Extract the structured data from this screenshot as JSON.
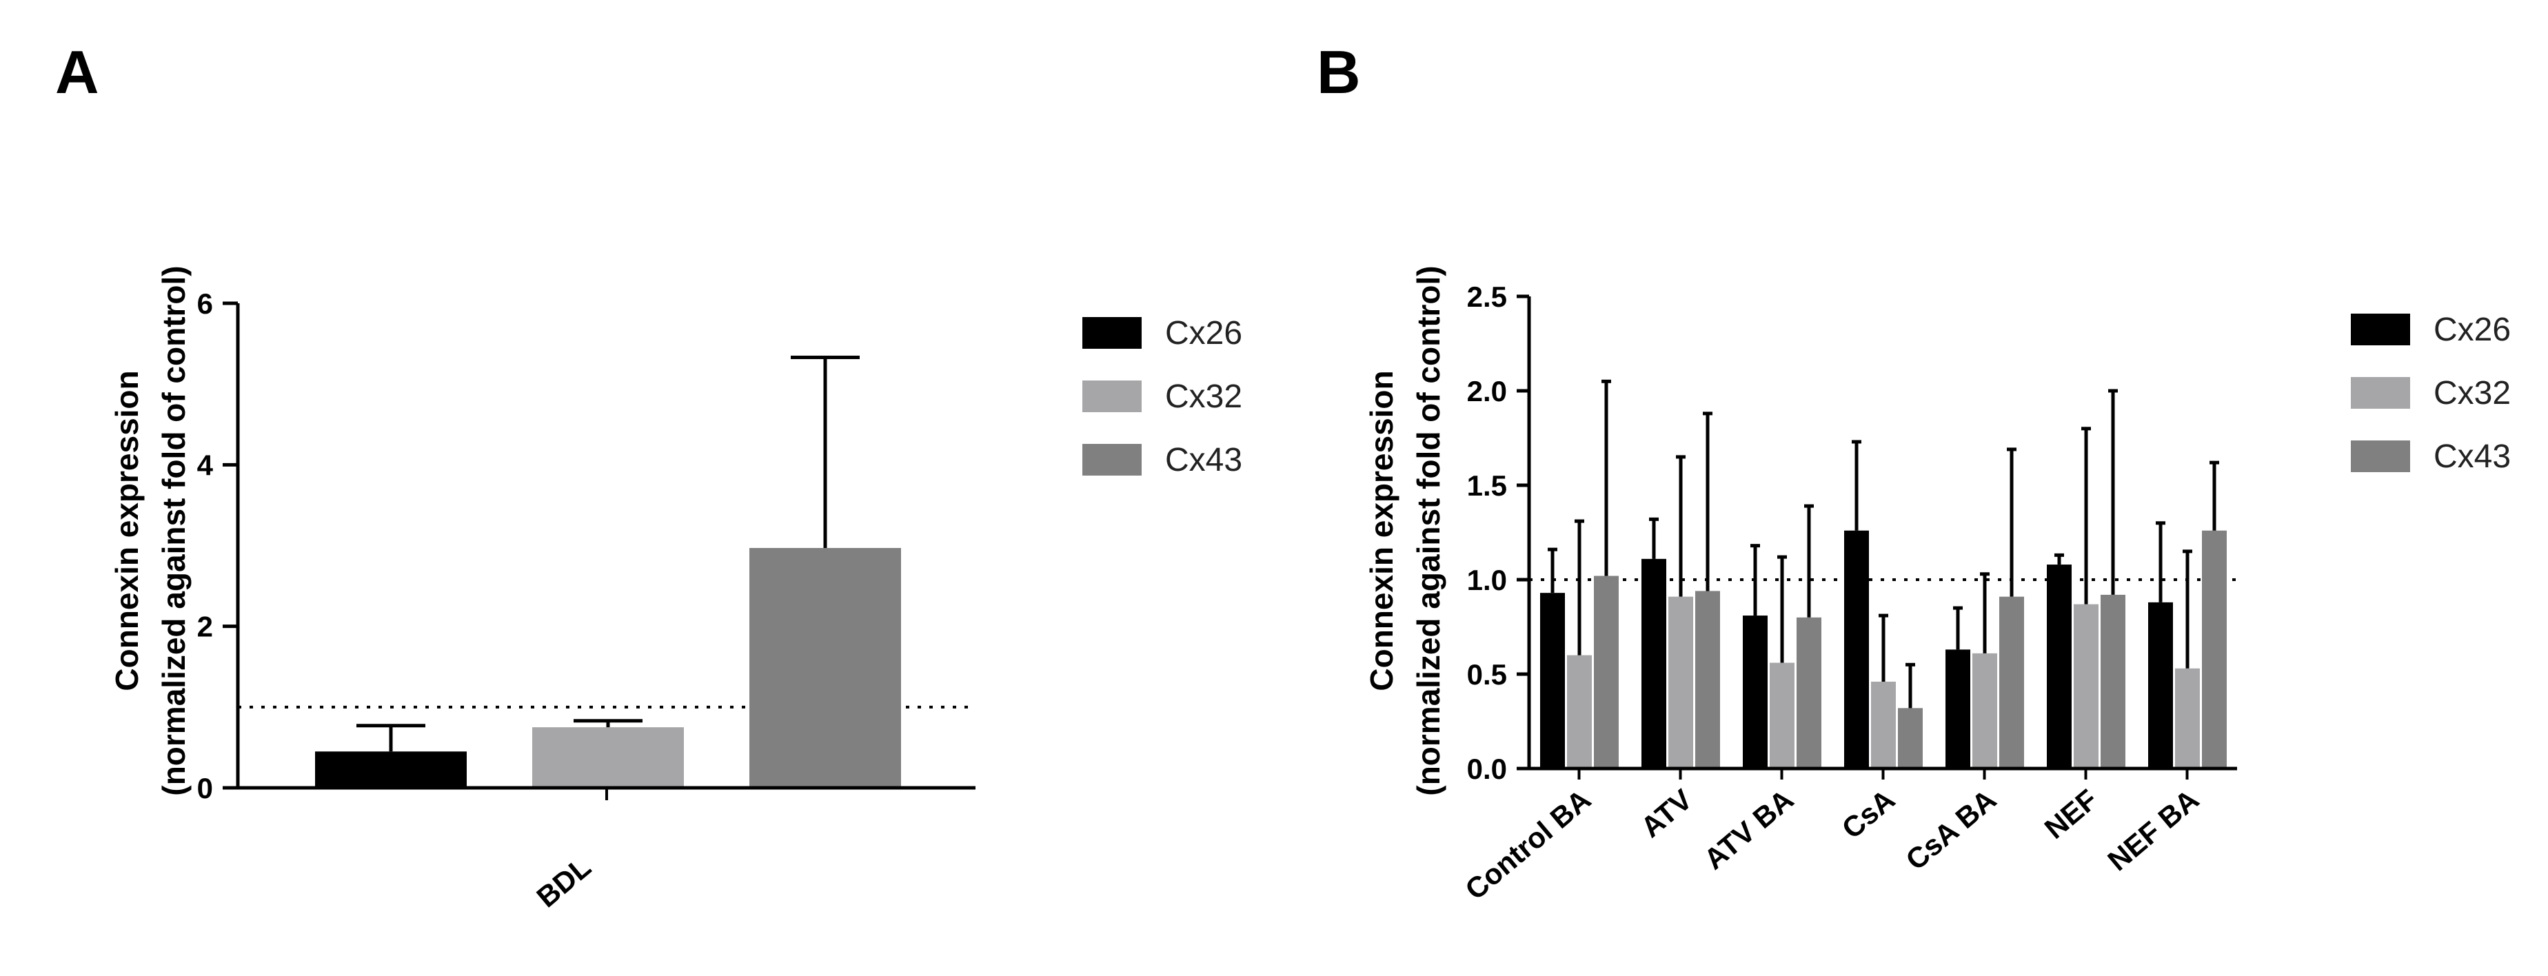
{
  "chart_data": [
    {
      "panel": "A",
      "type": "bar",
      "categories": [
        "BDL"
      ],
      "series": [
        {
          "name": "Cx26",
          "values": [
            0.45
          ],
          "errors": [
            0.32
          ],
          "color": "#000000"
        },
        {
          "name": "Cx32",
          "values": [
            0.75
          ],
          "errors": [
            0.08
          ],
          "color": "#a6a6a8"
        },
        {
          "name": "Cx43",
          "values": [
            2.97
          ],
          "errors": [
            2.36
          ],
          "color": "#808080"
        }
      ],
      "ylabel_lines": [
        "Connexin expression",
        "(normalized against fold of control)"
      ],
      "xlabel": "",
      "ylim": [
        0,
        6
      ],
      "yticks": [
        "0",
        "2",
        "4",
        "6"
      ],
      "reference_line": 1.0,
      "legend": "right"
    },
    {
      "panel": "B",
      "type": "bar",
      "categories": [
        "Control BA",
        "ATV",
        "ATV BA",
        "CsA",
        "CsA BA",
        "NEF",
        "NEF BA"
      ],
      "series": [
        {
          "name": "Cx26",
          "values": [
            0.93,
            1.11,
            0.81,
            1.26,
            0.63,
            1.08,
            0.88
          ],
          "errors": [
            0.23,
            0.21,
            0.37,
            0.47,
            0.22,
            0.05,
            0.42
          ],
          "color": "#000000"
        },
        {
          "name": "Cx32",
          "values": [
            0.6,
            0.91,
            0.56,
            0.46,
            0.61,
            0.87,
            0.53
          ],
          "errors": [
            0.71,
            0.74,
            0.56,
            0.35,
            0.42,
            0.93,
            0.62
          ],
          "color": "#a6a6a8"
        },
        {
          "name": "Cx43",
          "values": [
            1.02,
            0.94,
            0.8,
            0.32,
            0.91,
            0.92,
            1.26
          ],
          "errors": [
            1.03,
            0.94,
            0.59,
            0.23,
            0.78,
            1.08,
            0.36
          ],
          "color": "#808080"
        }
      ],
      "ylabel_lines": [
        "Connexin expression",
        "(normalized against fold of control)"
      ],
      "xlabel": "",
      "ylim": [
        0,
        2.5
      ],
      "yticks": [
        "0.0",
        "0.5",
        "1.0",
        "1.5",
        "2.0",
        "2.5"
      ],
      "reference_line": 1.0,
      "legend": "right"
    }
  ]
}
